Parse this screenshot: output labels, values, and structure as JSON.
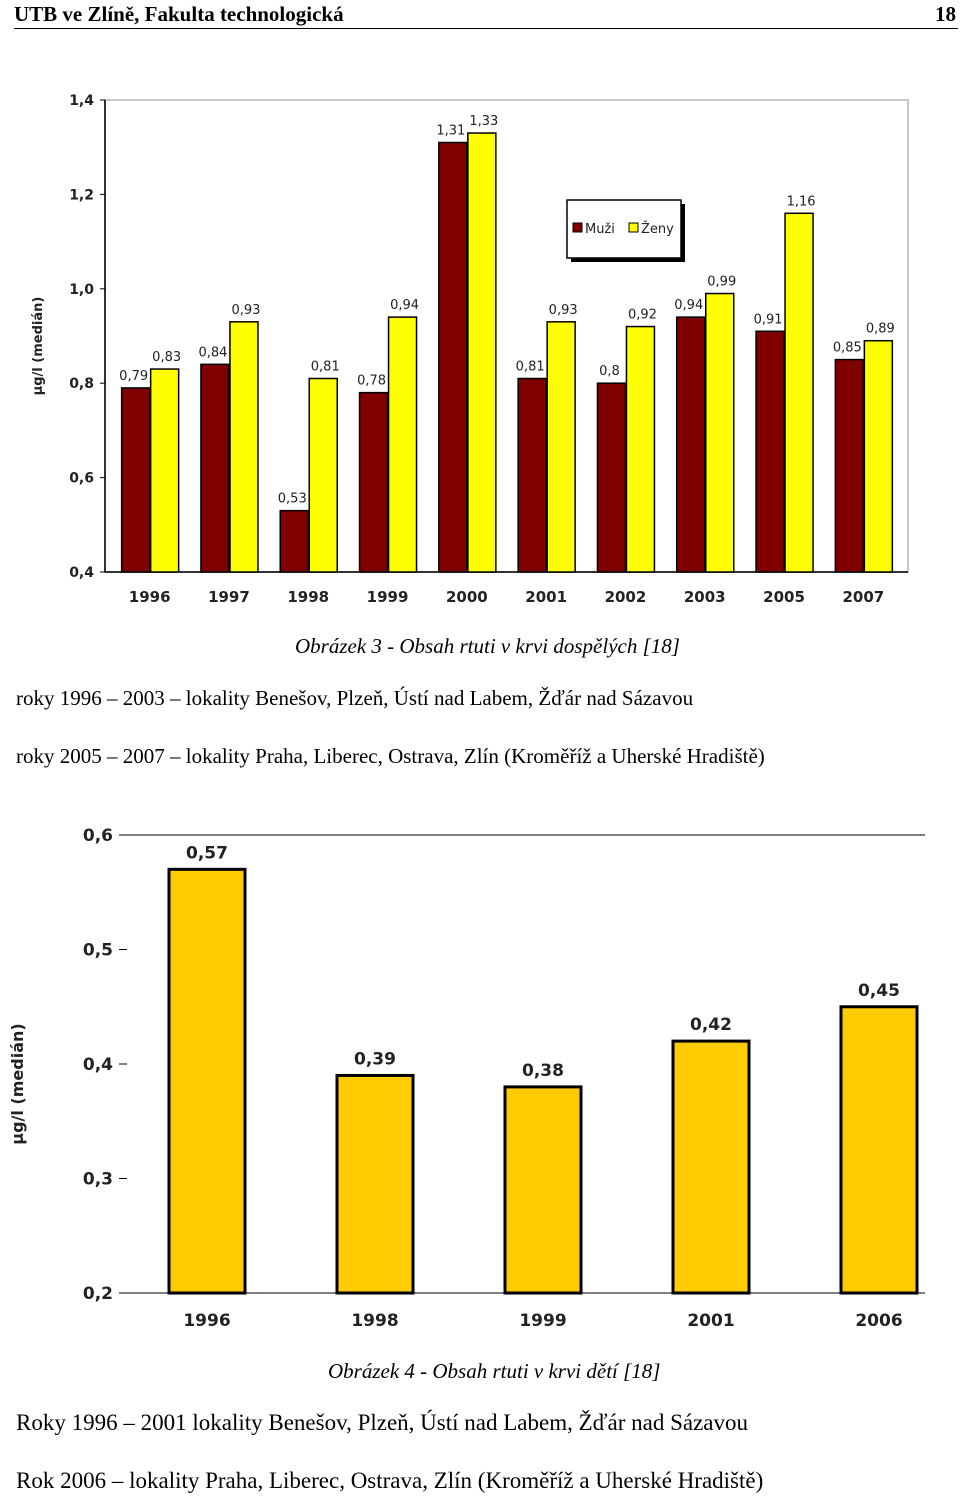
{
  "header": {
    "title": "UTB ve Zlíně, Fakulta technologická",
    "page_number": "18"
  },
  "figure3": {
    "caption": "Obrázek 3 - Obsah rtuti v krvi dospělých [18]",
    "chart_data": {
      "type": "bar",
      "categories": [
        "1996",
        "1997",
        "1998",
        "1999",
        "2000",
        "2001",
        "2002",
        "2003",
        "2005",
        "2007"
      ],
      "series": [
        {
          "name": "Muži",
          "color": "#800000",
          "values": [
            0.79,
            0.84,
            0.53,
            0.78,
            1.31,
            0.81,
            0.8,
            0.94,
            0.91,
            0.85
          ],
          "labels": [
            "0,79",
            "0,84",
            "0,53",
            "0,78",
            "1,31",
            "0,81",
            "0,8",
            "0,94",
            "0,91",
            "0,85"
          ]
        },
        {
          "name": "Ženy",
          "color": "#FFFF00",
          "values": [
            0.83,
            0.93,
            0.81,
            0.94,
            1.33,
            0.93,
            0.92,
            0.99,
            1.16,
            0.89
          ],
          "labels": [
            "0,83",
            "0,93",
            "0,81",
            "0,94",
            "1,33",
            "0,93",
            "0,92",
            "0,99",
            "1,16",
            "0,89"
          ]
        }
      ],
      "ylabel": "µg/l (medián)",
      "ylim": [
        0.4,
        1.4
      ],
      "yticks": [
        "0,4",
        "0,6",
        "0,8",
        "1,0",
        "1,2",
        "1,4"
      ],
      "legend": "top-center",
      "grid": false
    }
  },
  "paragraphs1": [
    "roky 1996 – 2003 – lokality Benešov, Plzeň, Ústí nad Labem, Žďár nad Sázavou",
    "roky 2005 – 2007 – lokality Praha, Liberec, Ostrava, Zlín (Kroměříž a Uherské Hradiště)"
  ],
  "figure4": {
    "caption": "Obrázek 4 - Obsah rtuti v krvi dětí [18]",
    "chart_data": {
      "type": "bar",
      "categories": [
        "1996",
        "1998",
        "1999",
        "2001",
        "2006"
      ],
      "series": [
        {
          "color": "#FFCC00",
          "values": [
            0.57,
            0.39,
            0.38,
            0.42,
            0.45
          ],
          "labels": [
            "0,57",
            "0,39",
            "0,38",
            "0,42",
            "0,45"
          ]
        }
      ],
      "ylabel": "µg/l (medián)",
      "ylim": [
        0.2,
        0.6
      ],
      "yticks": [
        "0,2",
        "0,3",
        "0,4",
        "0,5",
        "0,6"
      ],
      "grid": false
    }
  },
  "paragraphs2": [
    "Roky 1996 – 2001 lokality Benešov, Plzeň, Ústí nad Labem, Žďár nad Sázavou",
    "Rok 2006 – lokality Praha, Liberec, Ostrava, Zlín (Kroměříž a Uherské Hradiště)"
  ]
}
